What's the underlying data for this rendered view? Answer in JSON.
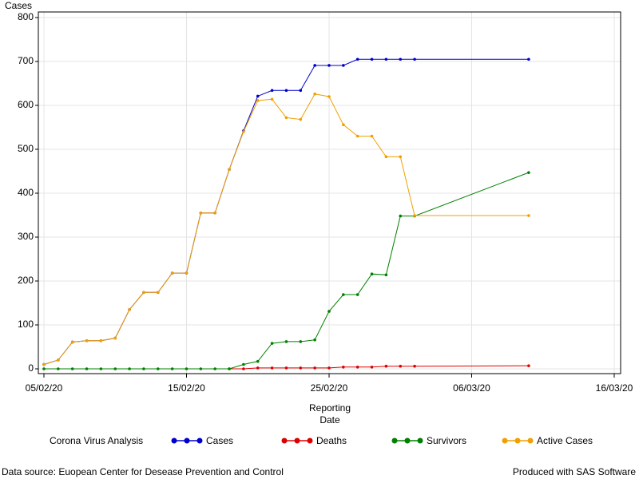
{
  "chart_data": {
    "type": "line",
    "y_label": "Cases",
    "x_label": [
      "Reporting",
      "Date"
    ],
    "legend_title": "Corona Virus Analysis",
    "legend": "bottom",
    "grid": true,
    "footnote_left": "Data source: Euopean Center for Desease Prevention and Control",
    "footnote_right": "Produced with SAS Software",
    "x": [
      "05/02/20",
      "06/02/20",
      "07/02/20",
      "08/02/20",
      "09/02/20",
      "10/02/20",
      "11/02/20",
      "12/02/20",
      "13/02/20",
      "14/02/20",
      "15/02/20",
      "16/02/20",
      "17/02/20",
      "18/02/20",
      "19/02/20",
      "20/02/20",
      "21/02/20",
      "22/02/20",
      "23/02/20",
      "24/02/20",
      "25/02/20",
      "26/02/20",
      "27/02/20",
      "28/02/20",
      "29/02/20",
      "01/03/20",
      "02/03/20",
      "10/03/20"
    ],
    "xlim": [
      "05/02/20",
      "16/03/20"
    ],
    "xticks": [
      "05/02/20",
      "15/02/20",
      "25/02/20",
      "06/03/20",
      "16/03/20"
    ],
    "ylim": [
      0,
      800
    ],
    "yticks": [
      0,
      100,
      200,
      300,
      400,
      500,
      600,
      700,
      800
    ],
    "series": [
      {
        "name": "Cases",
        "color": "#0000cc",
        "values": [
          10,
          20,
          61,
          64,
          64,
          70,
          135,
          174,
          174,
          218,
          218,
          355,
          355,
          454,
          542,
          621,
          634,
          634,
          634,
          691,
          691,
          691,
          705,
          705,
          705,
          705,
          705,
          705
        ]
      },
      {
        "name": "Deaths",
        "color": "#dd0000",
        "values": [
          null,
          null,
          null,
          null,
          null,
          null,
          null,
          null,
          null,
          null,
          null,
          null,
          null,
          0,
          0,
          2,
          2,
          2,
          2,
          2,
          2,
          4,
          4,
          4,
          6,
          6,
          6,
          7
        ]
      },
      {
        "name": "Survivors",
        "color": "#008000",
        "values": [
          0,
          0,
          0,
          0,
          0,
          0,
          0,
          0,
          0,
          0,
          0,
          0,
          0,
          0,
          10,
          17,
          58,
          62,
          62,
          66,
          131,
          169,
          169,
          216,
          214,
          348,
          348,
          447
        ]
      },
      {
        "name": "Active Cases",
        "color": "#f0a000",
        "values": [
          10,
          20,
          61,
          64,
          64,
          70,
          135,
          174,
          174,
          218,
          218,
          355,
          355,
          454,
          540,
          611,
          614,
          572,
          568,
          626,
          620,
          556,
          530,
          530,
          483,
          483,
          349,
          349
        ]
      }
    ]
  }
}
